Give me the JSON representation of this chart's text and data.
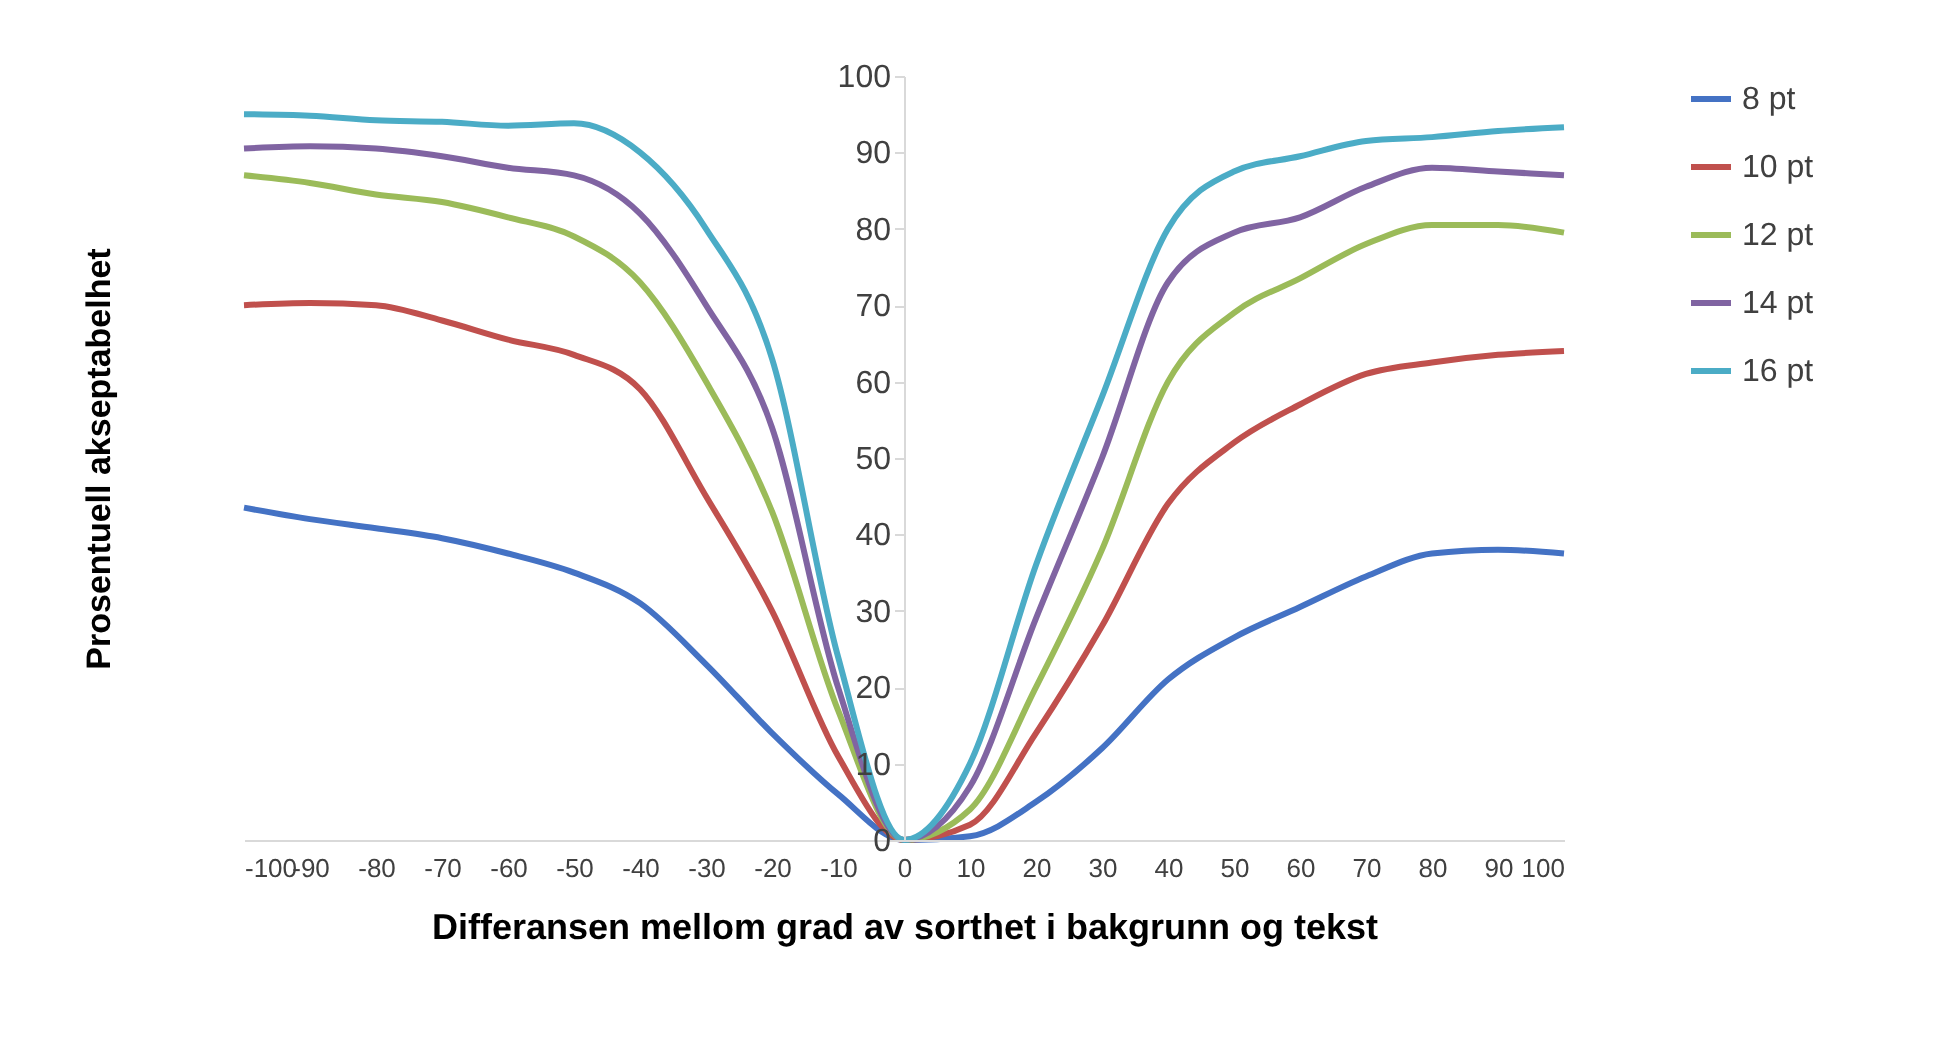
{
  "chart_data": {
    "type": "line",
    "xlabel": "Differansen mellom grad av sorthet i bakgrunn og tekst",
    "ylabel": "Prosentuell akseptabelhet",
    "x": [
      -100,
      -90,
      -80,
      -70,
      -60,
      -50,
      -40,
      -30,
      -20,
      -10,
      0,
      10,
      20,
      30,
      40,
      50,
      60,
      70,
      80,
      90,
      100
    ],
    "xlim": [
      -100,
      100
    ],
    "xticks": [
      -100,
      -90,
      -80,
      -70,
      -60,
      -50,
      -40,
      -30,
      -20,
      -10,
      0,
      10,
      20,
      30,
      40,
      50,
      60,
      70,
      80,
      90,
      100
    ],
    "ylim": [
      0,
      100
    ],
    "yticks": [
      0,
      10,
      20,
      30,
      40,
      50,
      60,
      70,
      80,
      90,
      100
    ],
    "grid": false,
    "legend": "right",
    "marker": "none",
    "line_style": "solid",
    "series": [
      {
        "name": "8 pt",
        "color": "#4472c4",
        "values": [
          43.5,
          42,
          40.8,
          39.5,
          37.5,
          35,
          31,
          23,
          14,
          6,
          0,
          0.5,
          5,
          12,
          21,
          26.5,
          30.5,
          34.5,
          37.5,
          38,
          37.5
        ]
      },
      {
        "name": "10 pt",
        "color": "#c0504d",
        "values": [
          70,
          70.3,
          70,
          68,
          65.5,
          63.5,
          59,
          45,
          30,
          11,
          0,
          2,
          14,
          28,
          44,
          52,
          57,
          61,
          62.5,
          63.5,
          64
        ]
      },
      {
        "name": "12 pt",
        "color": "#9bbb59",
        "values": [
          87,
          86,
          84.5,
          83.5,
          81.5,
          79,
          73,
          60,
          43,
          17,
          0,
          4,
          20,
          38,
          60,
          69,
          73.5,
          78,
          80.5,
          80.5,
          79.5
        ]
      },
      {
        "name": "14 pt",
        "color": "#8064a2",
        "values": [
          90.5,
          90.8,
          90.5,
          89.5,
          88,
          87,
          82,
          70,
          54,
          20,
          0,
          7,
          29,
          50,
          73,
          79.5,
          81.5,
          85.5,
          88,
          87.5,
          87
        ]
      },
      {
        "name": "16 pt",
        "color": "#4bacc6",
        "values": [
          95,
          94.8,
          94.2,
          94,
          93.5,
          93.8,
          90,
          80,
          63,
          24,
          0,
          10,
          36,
          58,
          80,
          87.5,
          89.5,
          91.5,
          92,
          92.8,
          93.3
        ]
      }
    ]
  }
}
